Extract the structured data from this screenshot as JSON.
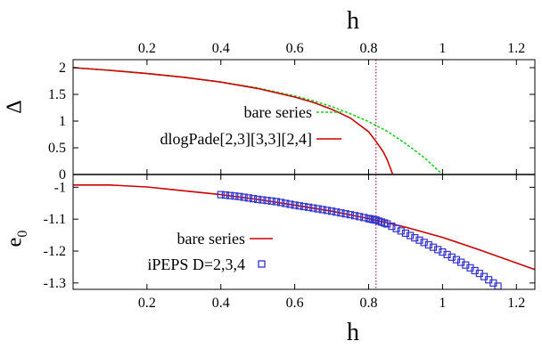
{
  "chart_data": [
    {
      "type": "line",
      "panel": "top",
      "xlabel": "h",
      "ylabel": "Δ",
      "xlim": [
        0.0,
        1.25
      ],
      "ylim": [
        0.0,
        2.15
      ],
      "xticks": [
        "0.2",
        "0.4",
        "0.6",
        "0.8",
        "1",
        "1.2"
      ],
      "yticks": [
        "0",
        "0.5",
        "1",
        "1.5",
        "2"
      ],
      "vline_x": 0.82,
      "legend_position": "right, below curves",
      "series": [
        {
          "name": "bare series",
          "style": "dashed",
          "color": "#22cc22",
          "x": [
            0.0,
            0.1,
            0.2,
            0.3,
            0.4,
            0.5,
            0.6,
            0.65,
            0.7,
            0.75,
            0.8,
            0.85,
            0.9,
            0.95,
            1.0
          ],
          "y": [
            2.0,
            1.95,
            1.89,
            1.82,
            1.73,
            1.62,
            1.47,
            1.38,
            1.27,
            1.14,
            0.99,
            0.81,
            0.58,
            0.32,
            0.0
          ]
        },
        {
          "name": "dlogPade[2,3][3,3][2,4]",
          "style": "solid",
          "color": "#cc0000",
          "x": [
            0.0,
            0.1,
            0.2,
            0.3,
            0.4,
            0.5,
            0.6,
            0.65,
            0.7,
            0.75,
            0.8,
            0.82,
            0.84,
            0.85,
            0.86,
            0.865
          ],
          "y": [
            2.0,
            1.95,
            1.89,
            1.82,
            1.73,
            1.61,
            1.45,
            1.35,
            1.22,
            1.06,
            0.8,
            0.62,
            0.42,
            0.28,
            0.1,
            0.0
          ]
        }
      ]
    },
    {
      "type": "line",
      "panel": "bottom",
      "xlabel": "h",
      "ylabel": "e0",
      "xlim": [
        0.0,
        1.25
      ],
      "ylim": [
        -1.32,
        -0.96
      ],
      "xticks": [
        "0.2",
        "0.4",
        "0.6",
        "0.8",
        "1",
        "1.2"
      ],
      "yticks": [
        "-1",
        "-1.1",
        "-1.2",
        "-1.3"
      ],
      "vline_x": 0.82,
      "legend_position": "center-left, below curves",
      "series": [
        {
          "name": "bare series",
          "style": "solid",
          "color": "#cc0000",
          "x": [
            0.0,
            0.1,
            0.2,
            0.3,
            0.4,
            0.5,
            0.6,
            0.7,
            0.8,
            0.9,
            1.0,
            1.1,
            1.25
          ],
          "y": [
            -0.993,
            -0.993,
            -0.999,
            -1.011,
            -1.023,
            -1.038,
            -1.056,
            -1.075,
            -1.098,
            -1.125,
            -1.157,
            -1.196,
            -1.258
          ]
        },
        {
          "name": "iPEPS D=2,3,4",
          "style": "open-squares",
          "color": "#3333cc",
          "x": [
            0.4,
            0.45,
            0.5,
            0.55,
            0.6,
            0.65,
            0.7,
            0.75,
            0.8,
            0.82,
            0.85,
            0.9,
            0.95,
            1.0,
            1.05,
            1.1,
            1.15
          ],
          "y": [
            -1.023,
            -1.029,
            -1.038,
            -1.045,
            -1.056,
            -1.065,
            -1.075,
            -1.086,
            -1.098,
            -1.103,
            -1.115,
            -1.144,
            -1.173,
            -1.203,
            -1.235,
            -1.27,
            -1.31
          ]
        }
      ]
    }
  ]
}
